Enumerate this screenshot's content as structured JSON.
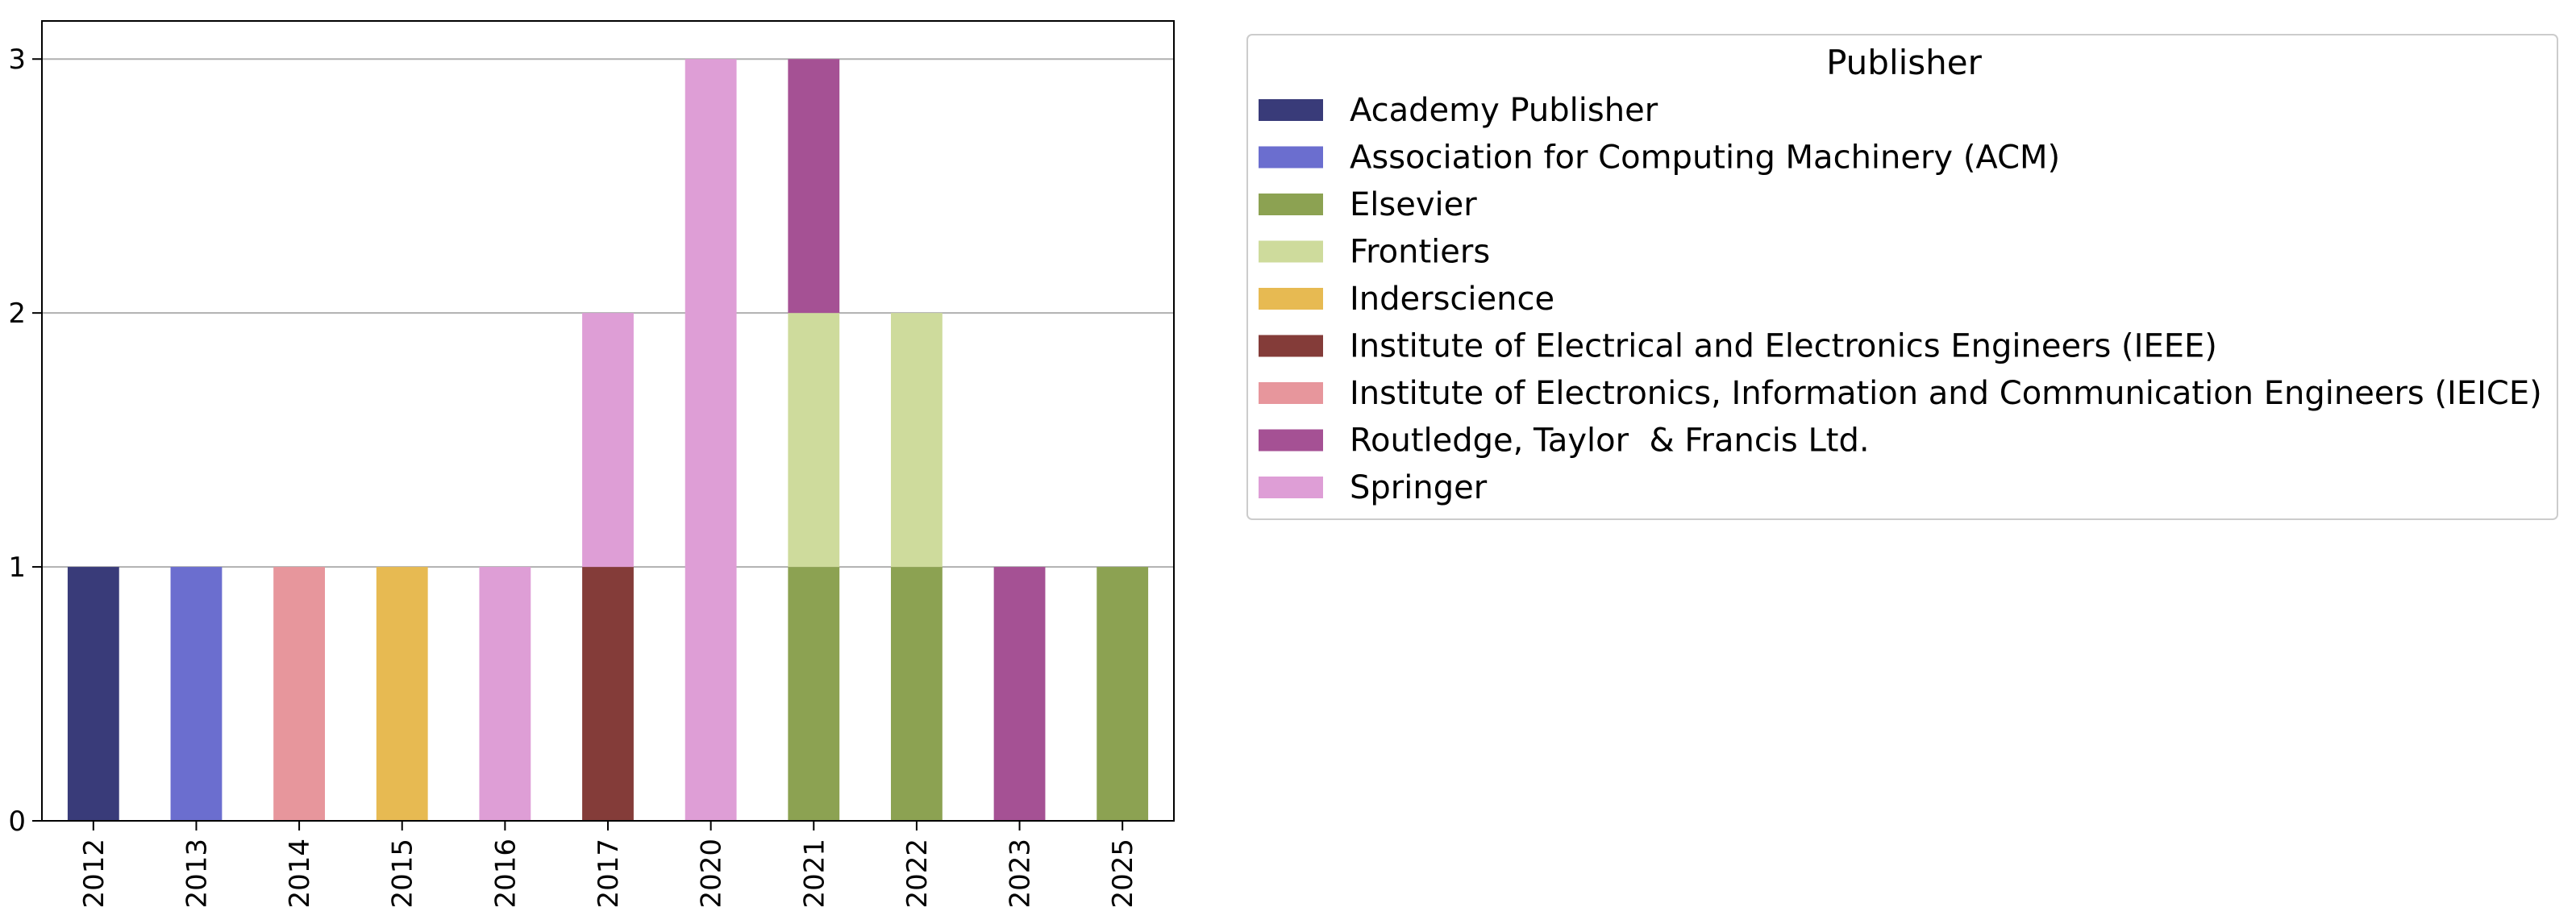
{
  "chart_data": {
    "type": "bar",
    "stacked": true,
    "categories": [
      "2012",
      "2013",
      "2014",
      "2015",
      "2016",
      "2017",
      "2020",
      "2021",
      "2022",
      "2023",
      "2025"
    ],
    "ylim": [
      0,
      3.15
    ],
    "yticks": [
      0,
      1,
      2,
      3
    ],
    "grid": true,
    "legend": {
      "title": "Publisher",
      "placement": "outside-right-top"
    },
    "series": [
      {
        "name": "Academy Publisher",
        "color": "#393b79",
        "values": [
          1,
          0,
          0,
          0,
          0,
          0,
          0,
          0,
          0,
          0,
          0
        ]
      },
      {
        "name": "Association for Computing Machinery (ACM)",
        "color": "#6b6ecf",
        "values": [
          0,
          1,
          0,
          0,
          0,
          0,
          0,
          0,
          0,
          0,
          0
        ]
      },
      {
        "name": "Elsevier",
        "color": "#8ca252",
        "values": [
          0,
          0,
          0,
          0,
          0,
          0,
          0,
          1,
          1,
          0,
          1
        ]
      },
      {
        "name": "Frontiers",
        "color": "#cedb9c",
        "values": [
          0,
          0,
          0,
          0,
          0,
          0,
          0,
          1,
          1,
          0,
          0
        ]
      },
      {
        "name": "Inderscience",
        "color": "#e7ba52",
        "values": [
          0,
          0,
          0,
          1,
          0,
          0,
          0,
          0,
          0,
          0,
          0
        ]
      },
      {
        "name": "Institute of Electrical and Electronics Engineers (IEEE)",
        "color": "#843c39",
        "values": [
          0,
          0,
          0,
          0,
          0,
          1,
          0,
          0,
          0,
          0,
          0
        ]
      },
      {
        "name": "Institute of Electronics, Information and Communication Engineers (IEICE)",
        "color": "#e7969c",
        "values": [
          0,
          0,
          1,
          0,
          0,
          0,
          0,
          0,
          0,
          0,
          0
        ]
      },
      {
        "name": "Routledge, Taylor  & Francis Ltd.",
        "color": "#a55194",
        "values": [
          0,
          0,
          0,
          0,
          0,
          0,
          0,
          1,
          0,
          1,
          0
        ]
      },
      {
        "name": "Springer",
        "color": "#de9ed6",
        "values": [
          0,
          0,
          0,
          0,
          1,
          1,
          3,
          0,
          0,
          0,
          0
        ]
      }
    ]
  }
}
